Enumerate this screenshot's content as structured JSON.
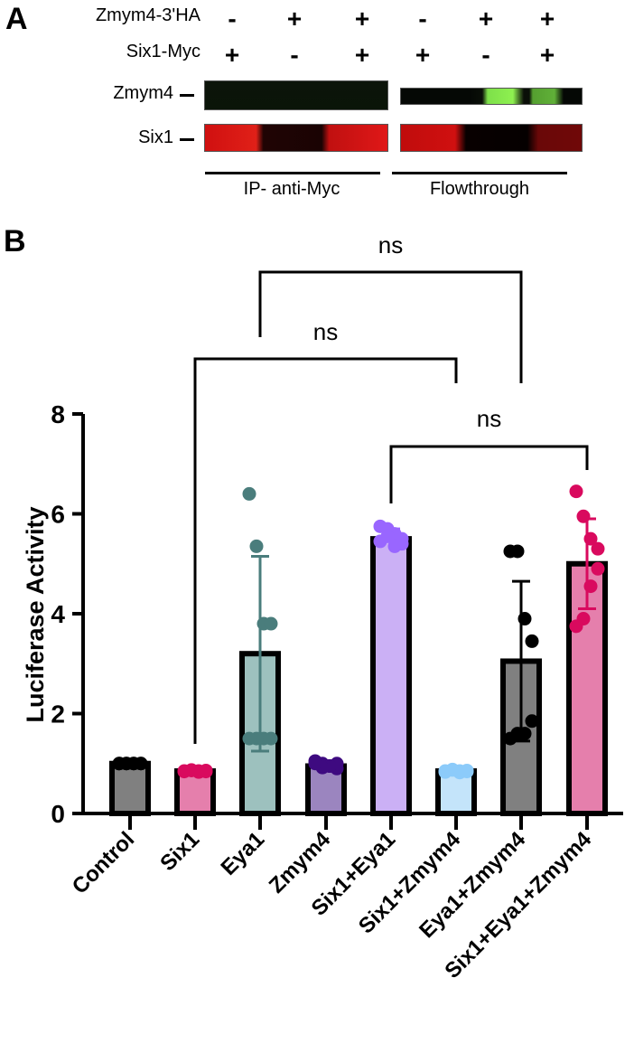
{
  "panel_a": {
    "letter": "A",
    "conditions": [
      {
        "label": "Zmym4-3'HA",
        "signs": [
          "-",
          "+",
          "+",
          "-",
          "+",
          "+"
        ]
      },
      {
        "label": "Six1-Myc",
        "signs": [
          "+",
          "-",
          "+",
          "+",
          "-",
          "+"
        ]
      }
    ],
    "bands": [
      {
        "label": "Zmym4"
      },
      {
        "label": "Six1"
      }
    ],
    "groups": [
      "IP- anti-Myc",
      "Flowthrough"
    ]
  },
  "panel_b": {
    "letter": "B"
  },
  "chart_data": {
    "type": "bar",
    "title": "",
    "xlabel": "",
    "ylabel": "Luciferase Activity",
    "ylim": [
      0,
      8
    ],
    "yticks": [
      0,
      2,
      4,
      6,
      8
    ],
    "grid": false,
    "categories": [
      "Control",
      "Six1",
      "Eya1",
      "Zmym4",
      "Six1+Eya1",
      "Six1+Zmym4",
      "Eya1+Zmym4",
      "Six1+Eya1+Zmym4"
    ],
    "values": [
      1.0,
      0.85,
      3.2,
      0.95,
      5.5,
      0.85,
      3.05,
      5.0
    ],
    "error_low": [
      1.0,
      0.85,
      1.25,
      0.95,
      5.5,
      0.85,
      1.45,
      4.1
    ],
    "error_high": [
      1.0,
      0.85,
      5.15,
      0.95,
      5.7,
      0.85,
      4.65,
      5.9
    ],
    "points": [
      [
        1.0,
        1.0,
        1.0,
        1.0,
        1.0,
        1.0,
        1.0,
        1.0
      ],
      [
        0.85,
        0.87,
        0.83,
        0.86,
        0.84,
        0.85,
        0.86,
        0.84
      ],
      [
        6.4,
        5.35,
        3.8,
        3.8,
        1.5,
        1.5,
        1.5,
        1.5
      ],
      [
        1.05,
        1.0,
        0.95,
        0.9,
        1.0,
        0.95,
        0.92,
        1.0
      ],
      [
        5.75,
        5.7,
        5.6,
        5.5,
        5.4,
        5.35,
        5.55,
        5.45
      ],
      [
        0.85,
        0.88,
        0.82,
        0.86,
        0.84,
        0.85,
        0.87,
        0.83
      ],
      [
        5.25,
        5.25,
        3.9,
        3.45,
        1.85,
        1.6,
        1.6,
        1.5
      ],
      [
        6.45,
        5.95,
        5.5,
        5.3,
        4.9,
        4.55,
        3.9,
        3.75
      ]
    ],
    "bar_colors": [
      "#808080",
      "#e57fac",
      "#9dc1be",
      "#9b85bf",
      "#cbb0f5",
      "#c4e4fa",
      "#808080",
      "#e57fac"
    ],
    "point_colors": [
      "#000000",
      "#d90a5e",
      "#4a7d7c",
      "#3e0a80",
      "#9966ff",
      "#8ccbfa",
      "#000000",
      "#d90a5e"
    ],
    "comparisons": [
      {
        "from": "Eya1",
        "to": "Eya1+Zmym4",
        "label": "ns"
      },
      {
        "from": "Six1",
        "to": "Six1+Zmym4",
        "label": "ns"
      },
      {
        "from": "Six1+Eya1",
        "to": "Six1+Eya1+Zmym4",
        "label": "ns"
      }
    ]
  }
}
